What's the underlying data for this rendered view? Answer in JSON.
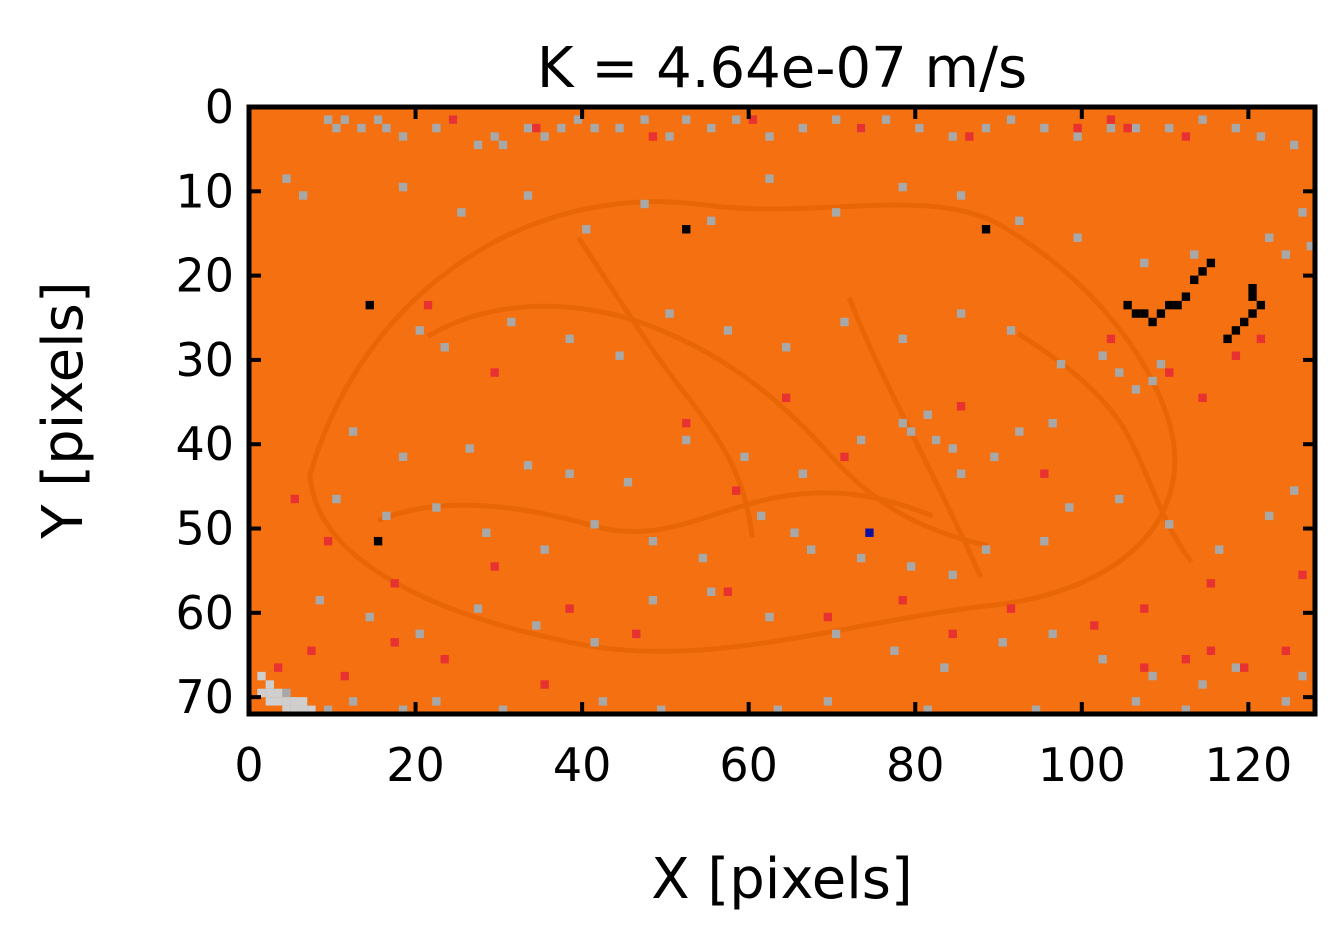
{
  "chart_data": {
    "type": "heatmap",
    "title": "K = 4.64e-07 m/s",
    "xlabel": "X [pixels]",
    "ylabel": "Y [pixels]",
    "xlim": [
      0,
      128
    ],
    "ylim": [
      72,
      0
    ],
    "x_ticks": [
      0,
      20,
      40,
      60,
      80,
      100,
      120
    ],
    "y_ticks": [
      0,
      10,
      20,
      30,
      40,
      50,
      60,
      70
    ],
    "grid": false,
    "legend": "none",
    "colors": {
      "background": "#f47010",
      "texture": "#e96606",
      "gray": "#a8a8a8",
      "light_gray": "#cfcfcf",
      "red": "#e83232",
      "black": "#000000",
      "blue": "#1010a0"
    },
    "gray_cells": [
      [
        9,
        1
      ],
      [
        10,
        2
      ],
      [
        11,
        1
      ],
      [
        13,
        2
      ],
      [
        15,
        1
      ],
      [
        16,
        2
      ],
      [
        18,
        3
      ],
      [
        22,
        2
      ],
      [
        24,
        1
      ],
      [
        27,
        4
      ],
      [
        29,
        3
      ],
      [
        30,
        4
      ],
      [
        33,
        2
      ],
      [
        35,
        3
      ],
      [
        37,
        2
      ],
      [
        39,
        1
      ],
      [
        41,
        2
      ],
      [
        44,
        2
      ],
      [
        47,
        1
      ],
      [
        50,
        3
      ],
      [
        52,
        1
      ],
      [
        55,
        2
      ],
      [
        58,
        1
      ],
      [
        62,
        3
      ],
      [
        66,
        2
      ],
      [
        70,
        1
      ],
      [
        73,
        2
      ],
      [
        76,
        1
      ],
      [
        80,
        2
      ],
      [
        84,
        3
      ],
      [
        88,
        2
      ],
      [
        91,
        1
      ],
      [
        95,
        2
      ],
      [
        99,
        3
      ],
      [
        103,
        2
      ],
      [
        106,
        2
      ],
      [
        110,
        2
      ],
      [
        114,
        1
      ],
      [
        118,
        2
      ],
      [
        121,
        3
      ],
      [
        125,
        4
      ],
      [
        4,
        8
      ],
      [
        6,
        10
      ],
      [
        18,
        9
      ],
      [
        25,
        12
      ],
      [
        33,
        10
      ],
      [
        40,
        14
      ],
      [
        47,
        11
      ],
      [
        55,
        13
      ],
      [
        62,
        8
      ],
      [
        70,
        12
      ],
      [
        78,
        9
      ],
      [
        85,
        10
      ],
      [
        92,
        13
      ],
      [
        99,
        15
      ],
      [
        107,
        18
      ],
      [
        113,
        17
      ],
      [
        122,
        15
      ],
      [
        126,
        12
      ],
      [
        127,
        16
      ],
      [
        124,
        17
      ],
      [
        20,
        26
      ],
      [
        23,
        28
      ],
      [
        31,
        25
      ],
      [
        38,
        27
      ],
      [
        44,
        29
      ],
      [
        50,
        24
      ],
      [
        57,
        26
      ],
      [
        64,
        28
      ],
      [
        71,
        25
      ],
      [
        78,
        27
      ],
      [
        85,
        24
      ],
      [
        91,
        26
      ],
      [
        97,
        30
      ],
      [
        102,
        29
      ],
      [
        104,
        31
      ],
      [
        109,
        30
      ],
      [
        106,
        33
      ],
      [
        108,
        32
      ],
      [
        12,
        38
      ],
      [
        18,
        41
      ],
      [
        26,
        40
      ],
      [
        33,
        42
      ],
      [
        38,
        43
      ],
      [
        45,
        44
      ],
      [
        52,
        39
      ],
      [
        59,
        41
      ],
      [
        66,
        43
      ],
      [
        73,
        39
      ],
      [
        78,
        37
      ],
      [
        79,
        38
      ],
      [
        81,
        36
      ],
      [
        82,
        39
      ],
      [
        84,
        40
      ],
      [
        85,
        43
      ],
      [
        89,
        41
      ],
      [
        92,
        38
      ],
      [
        96,
        37
      ],
      [
        10,
        46
      ],
      [
        16,
        48
      ],
      [
        22,
        47
      ],
      [
        28,
        50
      ],
      [
        35,
        52
      ],
      [
        41,
        49
      ],
      [
        48,
        51
      ],
      [
        54,
        53
      ],
      [
        61,
        48
      ],
      [
        65,
        50
      ],
      [
        67,
        52
      ],
      [
        73,
        53
      ],
      [
        79,
        54
      ],
      [
        84,
        55
      ],
      [
        88,
        52
      ],
      [
        95,
        51
      ],
      [
        98,
        47
      ],
      [
        104,
        46
      ],
      [
        110,
        49
      ],
      [
        116,
        52
      ],
      [
        122,
        48
      ],
      [
        125,
        45
      ],
      [
        8,
        58
      ],
      [
        14,
        60
      ],
      [
        20,
        62
      ],
      [
        27,
        59
      ],
      [
        34,
        61
      ],
      [
        41,
        63
      ],
      [
        48,
        58
      ],
      [
        55,
        57
      ],
      [
        62,
        60
      ],
      [
        70,
        62
      ],
      [
        77,
        64
      ],
      [
        83,
        66
      ],
      [
        90,
        63
      ],
      [
        96,
        62
      ],
      [
        102,
        65
      ],
      [
        108,
        67
      ],
      [
        114,
        68
      ],
      [
        118,
        66
      ],
      [
        124,
        70
      ],
      [
        126,
        67
      ],
      [
        4,
        69
      ],
      [
        5,
        70
      ],
      [
        6,
        71
      ],
      [
        3,
        72
      ],
      [
        7,
        72
      ],
      [
        9,
        71
      ],
      [
        12,
        70
      ],
      [
        15,
        72
      ],
      [
        18,
        71
      ],
      [
        22,
        70
      ],
      [
        25,
        72
      ],
      [
        30,
        71
      ],
      [
        36,
        72
      ],
      [
        42,
        70
      ],
      [
        49,
        71
      ],
      [
        56,
        72
      ],
      [
        63,
        71
      ],
      [
        69,
        70
      ],
      [
        75,
        72
      ],
      [
        81,
        71
      ],
      [
        87,
        72
      ],
      [
        94,
        71
      ],
      [
        100,
        72
      ],
      [
        106,
        70
      ],
      [
        112,
        71
      ],
      [
        117,
        72
      ]
    ],
    "red_cells": [
      [
        24,
        1
      ],
      [
        34,
        2
      ],
      [
        48,
        3
      ],
      [
        60,
        1
      ],
      [
        73,
        2
      ],
      [
        86,
        3
      ],
      [
        99,
        2
      ],
      [
        103,
        1
      ],
      [
        105,
        2
      ],
      [
        112,
        3
      ],
      [
        21,
        23
      ],
      [
        29,
        31
      ],
      [
        52,
        37
      ],
      [
        58,
        45
      ],
      [
        64,
        34
      ],
      [
        71,
        41
      ],
      [
        85,
        35
      ],
      [
        95,
        43
      ],
      [
        103,
        27
      ],
      [
        110,
        31
      ],
      [
        114,
        34
      ],
      [
        118,
        29
      ],
      [
        121,
        27
      ],
      [
        5,
        46
      ],
      [
        9,
        51
      ],
      [
        17,
        56
      ],
      [
        29,
        54
      ],
      [
        38,
        59
      ],
      [
        46,
        62
      ],
      [
        57,
        57
      ],
      [
        69,
        60
      ],
      [
        78,
        58
      ],
      [
        84,
        62
      ],
      [
        91,
        59
      ],
      [
        101,
        61
      ],
      [
        107,
        59
      ],
      [
        115,
        56
      ],
      [
        126,
        55
      ],
      [
        3,
        66
      ],
      [
        7,
        64
      ],
      [
        11,
        67
      ],
      [
        17,
        63
      ],
      [
        23,
        65
      ],
      [
        35,
        68
      ],
      [
        107,
        66
      ],
      [
        112,
        65
      ],
      [
        115,
        64
      ],
      [
        119,
        66
      ],
      [
        124,
        64
      ]
    ],
    "light_cells": [
      [
        1,
        67
      ],
      [
        2,
        68
      ],
      [
        3,
        69
      ],
      [
        4,
        70
      ],
      [
        5,
        71
      ],
      [
        6,
        71
      ],
      [
        7,
        71
      ],
      [
        2,
        70
      ],
      [
        3,
        70
      ],
      [
        4,
        71
      ],
      [
        5,
        70
      ],
      [
        6,
        70
      ],
      [
        1,
        69
      ],
      [
        2,
        69
      ]
    ],
    "black_cells": [
      [
        14,
        23
      ],
      [
        15,
        51
      ],
      [
        52,
        14
      ],
      [
        88,
        14
      ],
      [
        105,
        23
      ],
      [
        106,
        24
      ],
      [
        107,
        24
      ],
      [
        108,
        25
      ],
      [
        109,
        24
      ],
      [
        110,
        23
      ],
      [
        111,
        23
      ],
      [
        112,
        22
      ],
      [
        113,
        20
      ],
      [
        114,
        19
      ],
      [
        115,
        18
      ],
      [
        117,
        27
      ],
      [
        118,
        26
      ],
      [
        119,
        25
      ],
      [
        120,
        24
      ],
      [
        121,
        23
      ],
      [
        120,
        22
      ],
      [
        120,
        21
      ]
    ],
    "blue_cells": [
      [
        74,
        50
      ]
    ]
  }
}
